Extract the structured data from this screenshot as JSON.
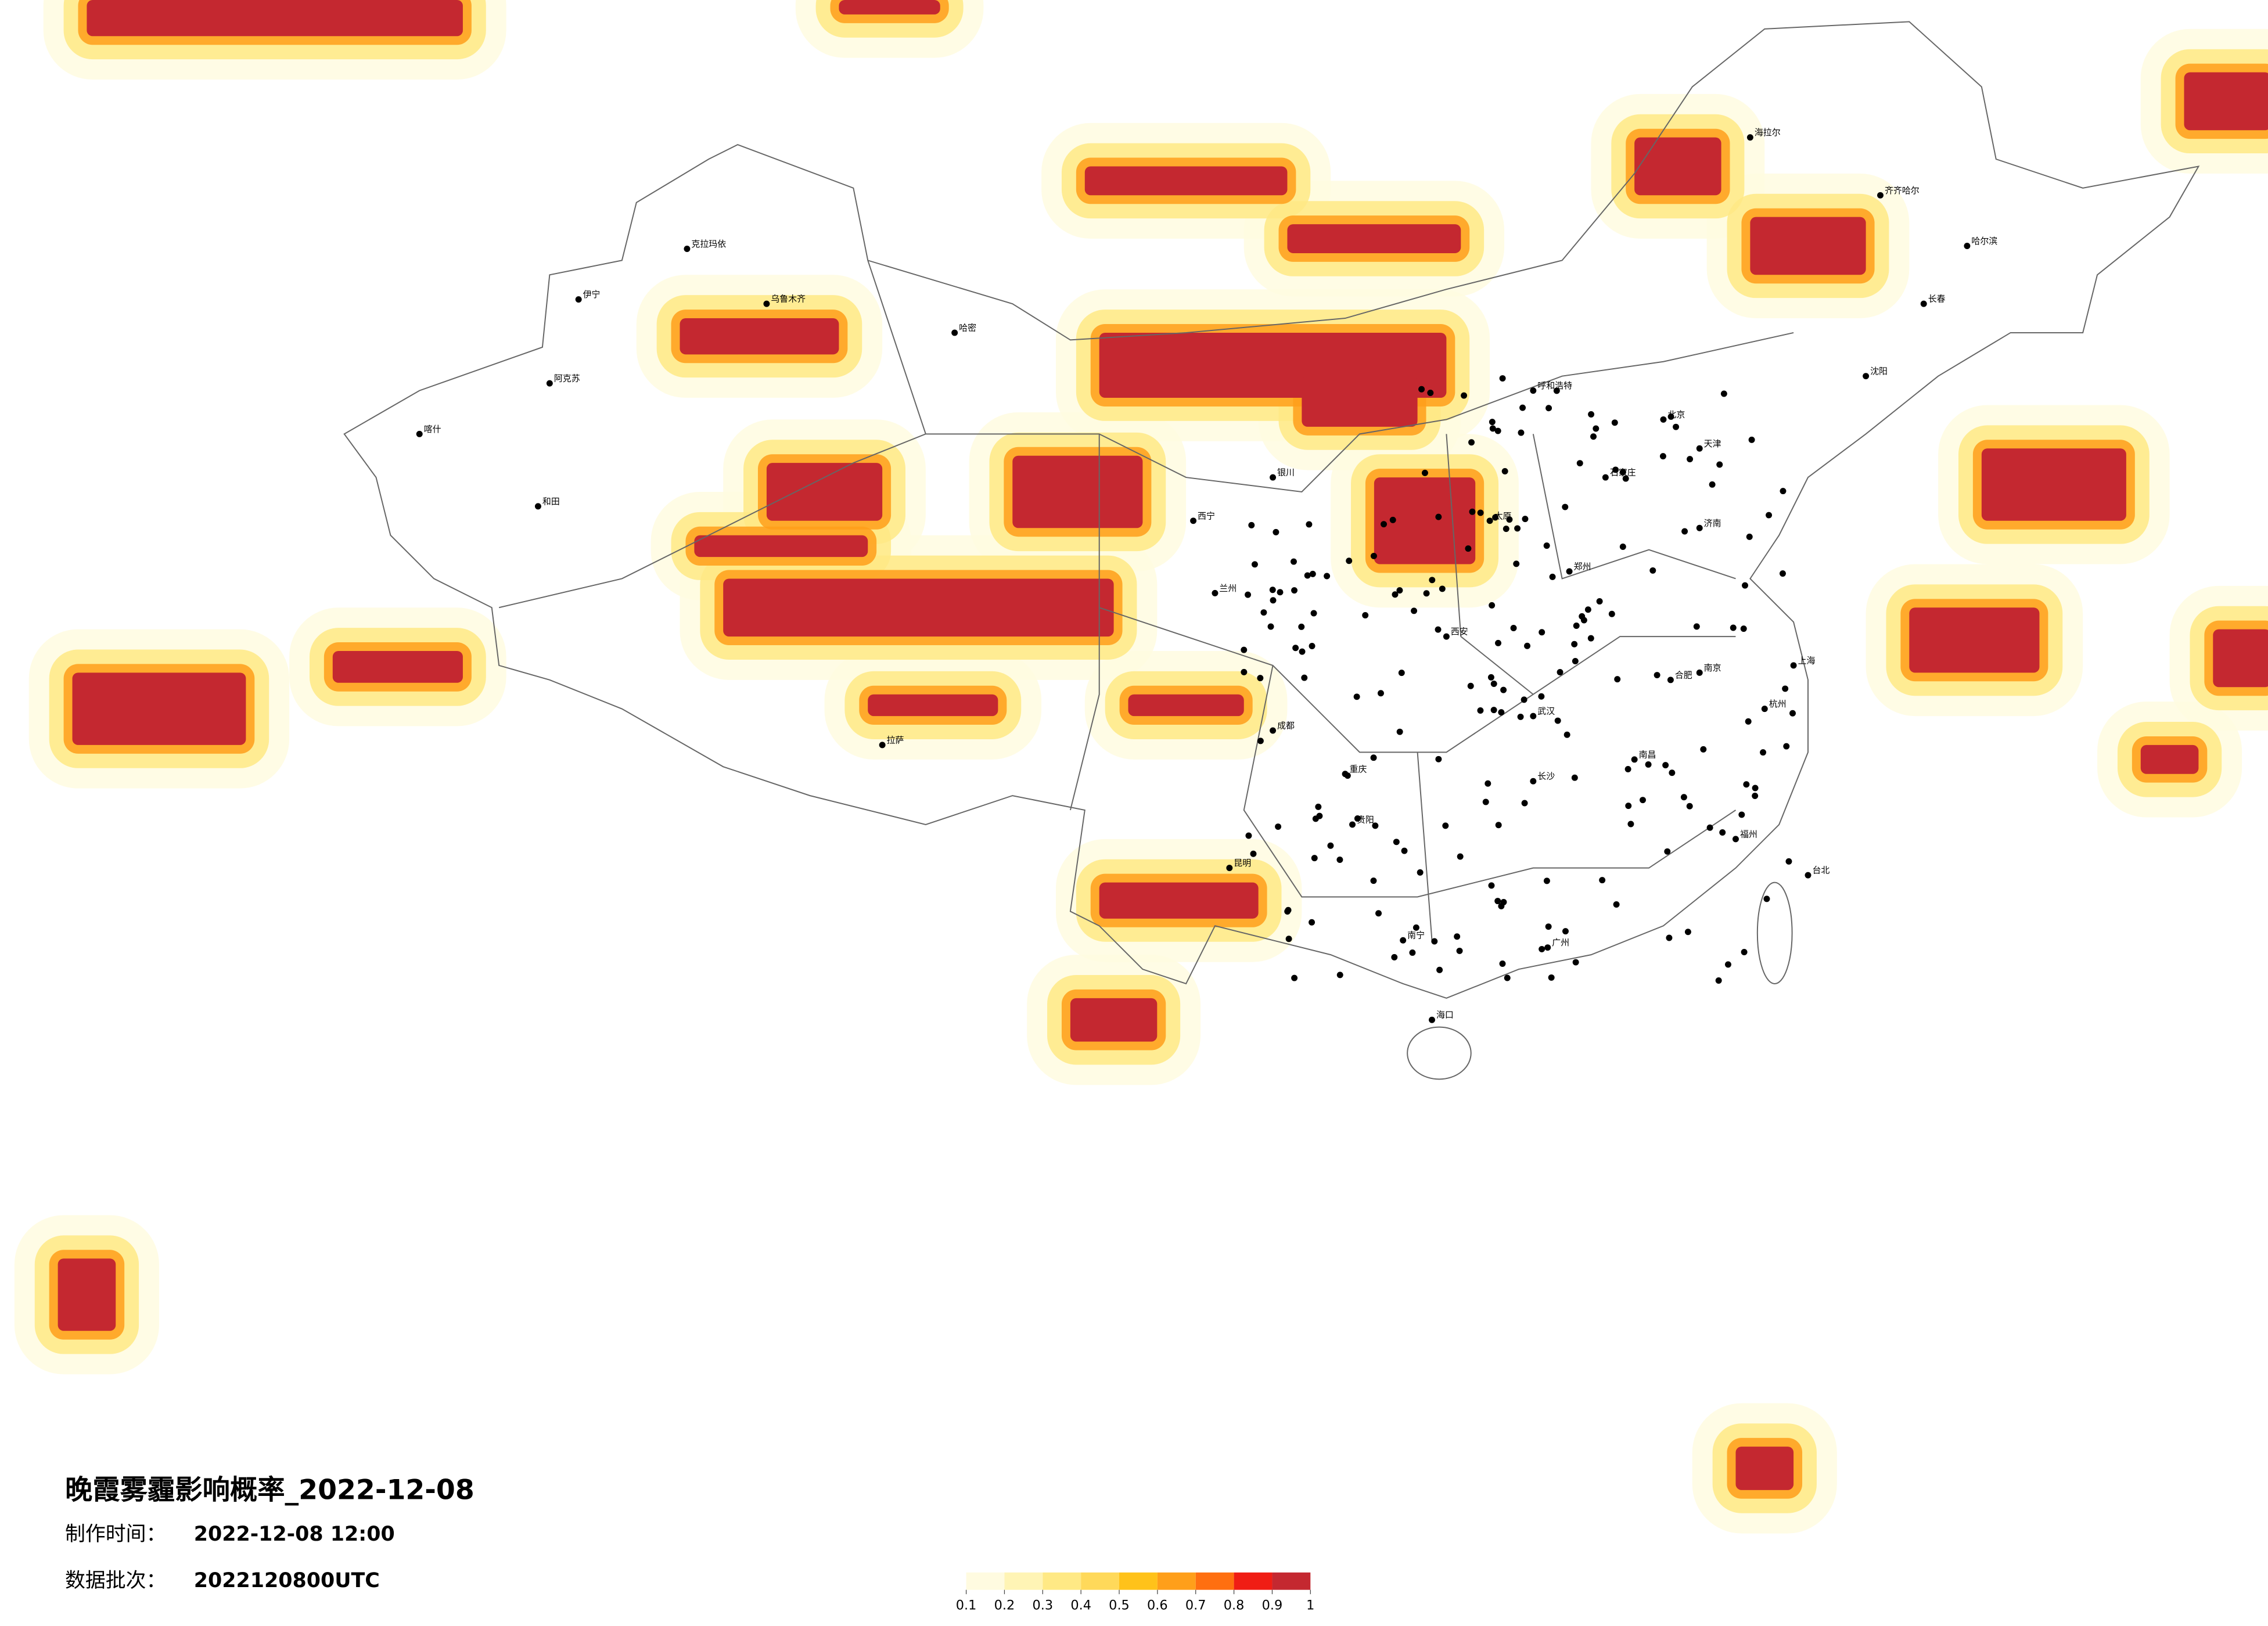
{
  "title": "晚霞雾霾影响概率_2022-12-08",
  "made_time": {
    "label": "制作时间：",
    "value": "2022-12-08 12:00"
  },
  "batch": {
    "label": "数据批次：",
    "value": "2022120800UTC"
  },
  "legend": {
    "ticks": [
      0.1,
      0.2,
      0.3,
      0.4,
      0.5,
      0.6,
      0.7,
      0.8,
      0.9,
      1
    ],
    "colors": [
      "#fffbe0",
      "#fff4b5",
      "#ffe985",
      "#ffd95a",
      "#ffc21a",
      "#ff9f1a",
      "#ff6f10",
      "#f01d14",
      "#c42830"
    ]
  },
  "cities": [
    "克拉玛依",
    "乌鲁木齐",
    "伊宁",
    "阿克苏",
    "喀什",
    "和田",
    "哈密",
    "拉萨",
    "西宁",
    "兰州",
    "成都",
    "重庆",
    "昆明",
    "贵阳",
    "南宁",
    "海口",
    "广州",
    "福州",
    "台北",
    "杭州",
    "上海",
    "南京",
    "武汉",
    "长沙",
    "郑州",
    "北京",
    "天津",
    "石家庄",
    "太原",
    "西安",
    "银川",
    "呼和浩特",
    "沈阳",
    "长春",
    "哈尔滨",
    "海拉尔",
    "齐齐哈尔",
    "济南",
    "合肥",
    "南昌"
  ]
}
